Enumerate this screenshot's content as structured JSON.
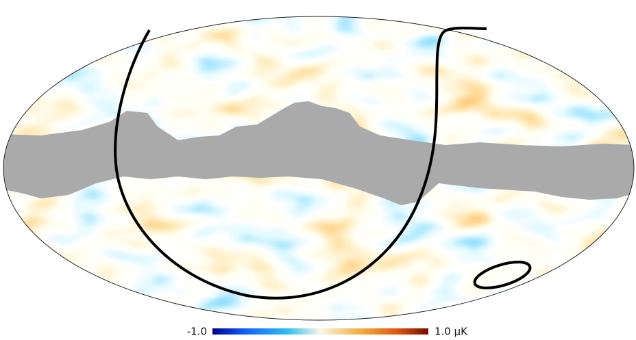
{
  "colorbar": {
    "min": {
      "value": -1.0,
      "label": "-1.0"
    },
    "max": {
      "value": 1.0,
      "label": "1.0 µK"
    }
  }
}
